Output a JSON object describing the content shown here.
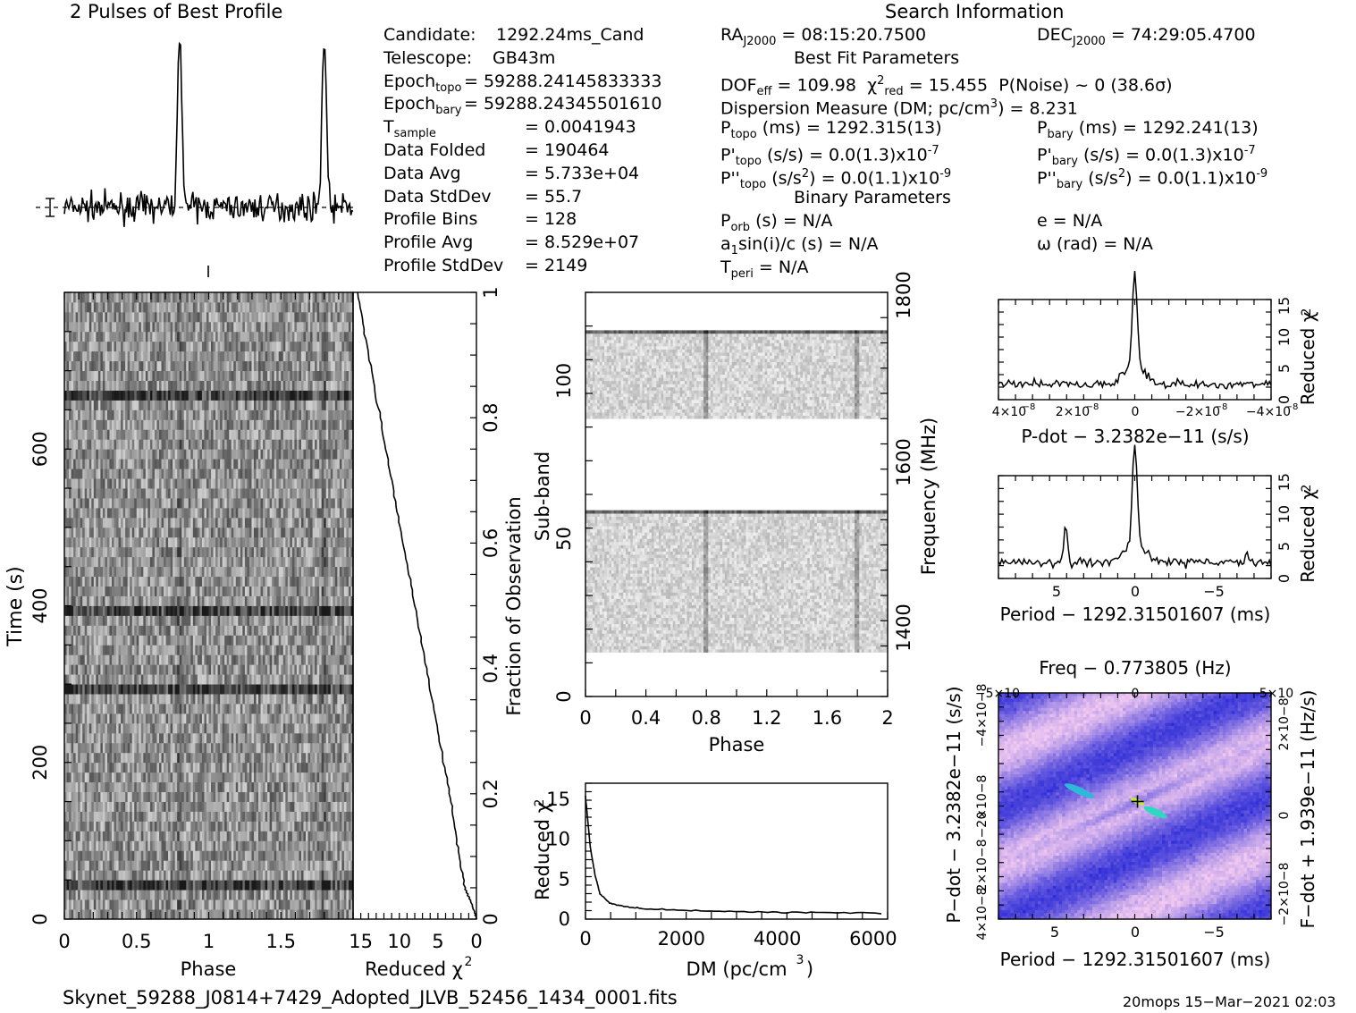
{
  "profile_title": "2 Pulses of Best Profile",
  "search_title": "Search Information",
  "best_fit_title": "Best Fit Parameters",
  "binary_title": "Binary Parameters",
  "info_left": [
    {
      "label": "Candidate:",
      "value": "1292.24ms_Cand"
    },
    {
      "label": "Telescope:",
      "value": "GB43m"
    },
    {
      "label": "Epoch",
      "sub": "topo",
      "value": "= 59288.24145833333"
    },
    {
      "label": "Epoch",
      "sub": "bary",
      "value": "= 59288.24345501610"
    },
    {
      "label": "T",
      "sub": "sample",
      "value": "=   0.0041943"
    },
    {
      "label": "Data Folded",
      "value": "=   190464"
    },
    {
      "label": "Data Avg",
      "value": "=   5.733e+04"
    },
    {
      "label": "Data StdDev",
      "value": "=   55.7"
    },
    {
      "label": "Profile Bins",
      "value": "=   128"
    },
    {
      "label": "Profile Avg",
      "value": "=   8.529e+07"
    },
    {
      "label": "Profile StdDev",
      "value": "=   2149"
    }
  ],
  "info_mid": {
    "ra": "RA",
    "ra_sub": "J2000",
    "ra_value": "= 08:15:20.7500",
    "dec": "DEC",
    "dec_sub": "J2000",
    "dec_value": "= 74:29:05.4700",
    "dof": "DOF",
    "dof_sub": "eff",
    "dof_value": "= 109.98",
    "chi": "χ",
    "chi_sup": "2",
    "chi_sub": "red",
    "chi_value": "= 15.455",
    "pnoise": "P(Noise) ~ 0    (38.6σ)",
    "dm": "Dispersion Measure (DM; pc/cm",
    "dm_sup": "3",
    "dm_value": ") = 8.231",
    "ptopo": "P",
    "ptopo_sub": "topo",
    "ptopo_value": "(ms) =   1292.315(13)",
    "pbary": "P",
    "pbary_sub": "bary",
    "pbary_value": "(ms) =   1292.241(13)",
    "pdtopo": "P'",
    "pdtopo_sub": "topo",
    "pdtopo_value": "(s/s) = 0.0(1.3)x10",
    "pdtopo_exp": "-7",
    "pdbary": "P'",
    "pdbary_sub": "bary",
    "pdbary_value": "(s/s) = 0.0(1.3)x10",
    "pdbary_exp": "-7",
    "pddtopo": "P''",
    "pddtopo_sub": "topo",
    "pddtopo_value": "(s/s",
    "pddtopo_sup": "2",
    "pddtopo_value2": ") = 0.0(1.1)x10",
    "pddtopo_exp": "-9",
    "pddbary": "P''",
    "pddbary_sub": "bary",
    "pddbary_value": "(s/s",
    "pddbary_sup": "2",
    "pddbary_value2": ") = 0.0(1.1)x10",
    "pddbary_exp": "-9",
    "porb": "P",
    "porb_sub": "orb",
    "porb_value": "(s) = N/A",
    "asini_a": "a",
    "asini_sub": "1",
    "asini_value": "sin(i)/c (s) = N/A",
    "tperi": "T",
    "tperi_sub": "peri",
    "tperi_value": "= N/A",
    "ecc": "e = N/A",
    "omega": "ω (rad) = N/A"
  },
  "footer_file": "Skynet_59288_J0814+7429_Adopted_JLVB_52456_1434_0001.fits",
  "footer_stamp": "20mops 15−Mar−2021 02:03",
  "colors": {
    "line": "#000000",
    "cmap_low": "#2a2adc",
    "cmap_high": "#e8c8e8"
  },
  "chart_data": [
    {
      "type": "line",
      "title": "2 Pulses of Best Profile",
      "x": "phase 0-2 (2 pulses)",
      "peak_phases": [
        0.8,
        1.8
      ],
      "peak_height": 1.0,
      "baseline": 0.0
    },
    {
      "type": "heatmap",
      "name": "time-phase",
      "xlabel": "Phase",
      "ylabel": "Time (s)",
      "xlim": [
        0,
        2
      ],
      "ylim": [
        0,
        800
      ],
      "xticks": [
        "0",
        "0.5",
        "1",
        "1.5"
      ],
      "yticks": [
        "0",
        "200",
        "400",
        "600"
      ],
      "bright_rows_s": [
        398,
        290,
        665,
        45
      ],
      "pulse_phase": 0.8
    },
    {
      "type": "line",
      "name": "reduced-chi2-vs-fraction",
      "xlabel": "Reduced χ2",
      "ylabel": "Fraction of Observation",
      "xticks": [
        "15",
        "10",
        "5",
        "0"
      ],
      "yticks": [
        "0",
        "0.2",
        "0.4",
        "0.6",
        "0.8",
        "1"
      ],
      "xlim": [
        16,
        0
      ],
      "ylim": [
        0,
        1
      ],
      "points": [
        [
          0,
          0
        ],
        [
          0.5,
          0.02
        ],
        [
          1.5,
          0.05
        ],
        [
          2.5,
          0.12
        ],
        [
          3.5,
          0.2
        ],
        [
          5,
          0.3
        ],
        [
          6.5,
          0.4
        ],
        [
          8,
          0.5
        ],
        [
          9.5,
          0.6
        ],
        [
          11,
          0.7
        ],
        [
          12.5,
          0.8
        ],
        [
          14,
          0.9
        ],
        [
          15.4,
          1.0
        ]
      ]
    },
    {
      "type": "heatmap",
      "name": "subband-phase",
      "xlabel": "Phase",
      "ylabel": "Sub-band",
      "y2label": "Frequency (MHz)",
      "xlim": [
        0,
        2
      ],
      "ylim": [
        0,
        128
      ],
      "xticks": [
        "0",
        "0.4",
        "0.8",
        "1.2",
        "1.6",
        "2"
      ],
      "yticks": [
        "0",
        "50",
        "100"
      ],
      "y2ticks": [
        "1400",
        "1600",
        "1800"
      ],
      "filled_bands": [
        [
          14,
          59
        ],
        [
          88,
          116
        ]
      ]
    },
    {
      "type": "line",
      "name": "dm-chi2",
      "xlabel": "DM (pc/cm3)",
      "ylabel": "Reduced χ2",
      "xlim": [
        0,
        6300
      ],
      "ylim": [
        0,
        17
      ],
      "xticks": [
        "0",
        "2000",
        "4000",
        "6000"
      ],
      "yticks": [
        "0",
        "5",
        "10",
        "15"
      ],
      "points": [
        [
          0,
          15.4
        ],
        [
          100,
          9
        ],
        [
          200,
          5.5
        ],
        [
          300,
          3.2
        ],
        [
          500,
          2
        ],
        [
          800,
          1.6
        ],
        [
          1200,
          1.3
        ],
        [
          2000,
          1.1
        ],
        [
          3000,
          0.95
        ],
        [
          4000,
          0.85
        ],
        [
          5000,
          0.8
        ],
        [
          6300,
          0.75
        ]
      ]
    },
    {
      "type": "line",
      "name": "pdot-chi2",
      "xlabel": "P-dot − 3.2382e−11 (s/s)",
      "ylabel": "Reduced χ2",
      "xticks": [
        "4×10−8",
        "2×10−8",
        "0",
        "−2×10−8",
        "−4×10−8"
      ],
      "yticks": [
        "0",
        "5",
        "10",
        "15"
      ],
      "xlim": [
        4e-08,
        -4e-08
      ],
      "ylim": [
        0,
        16
      ],
      "peak_at": 0,
      "peak_value": 15.4
    },
    {
      "type": "line",
      "name": "period-chi2",
      "xlabel": "Period − 1292.31501607 (ms)",
      "ylabel": "Reduced χ2",
      "xticks": [
        "5",
        "0",
        "−5"
      ],
      "yticks": [
        "0",
        "5",
        "10",
        "15"
      ],
      "xlim": [
        8.5,
        -8.5
      ],
      "ylim": [
        0,
        16
      ],
      "peak_at": 0,
      "peak_value": 15.4,
      "secondary_peaks": [
        [
          4.3,
          8.2
        ],
        [
          -7.0,
          4.5
        ]
      ]
    },
    {
      "type": "heatmap",
      "name": "period-pdot",
      "xlabel": "Period − 1292.31501607 (ms)",
      "ylabel": "P−dot − 3.2382e−11 (s/s)",
      "x2label": "Freq − 0.773805 (Hz)",
      "y2label": "F−dot + 1.939e−11 (Hz/s)",
      "xticks": [
        "5",
        "0",
        "−5"
      ],
      "x2ticks": [
        "−5×10−3",
        "0",
        "5×10−3"
      ],
      "yticks": [
        "4×10−8",
        "2×10−8",
        "0",
        "−2×10−8",
        "−4×10−8"
      ],
      "y2ticks": [
        "−2×10−8",
        "0",
        "2×10−8"
      ]
    }
  ]
}
